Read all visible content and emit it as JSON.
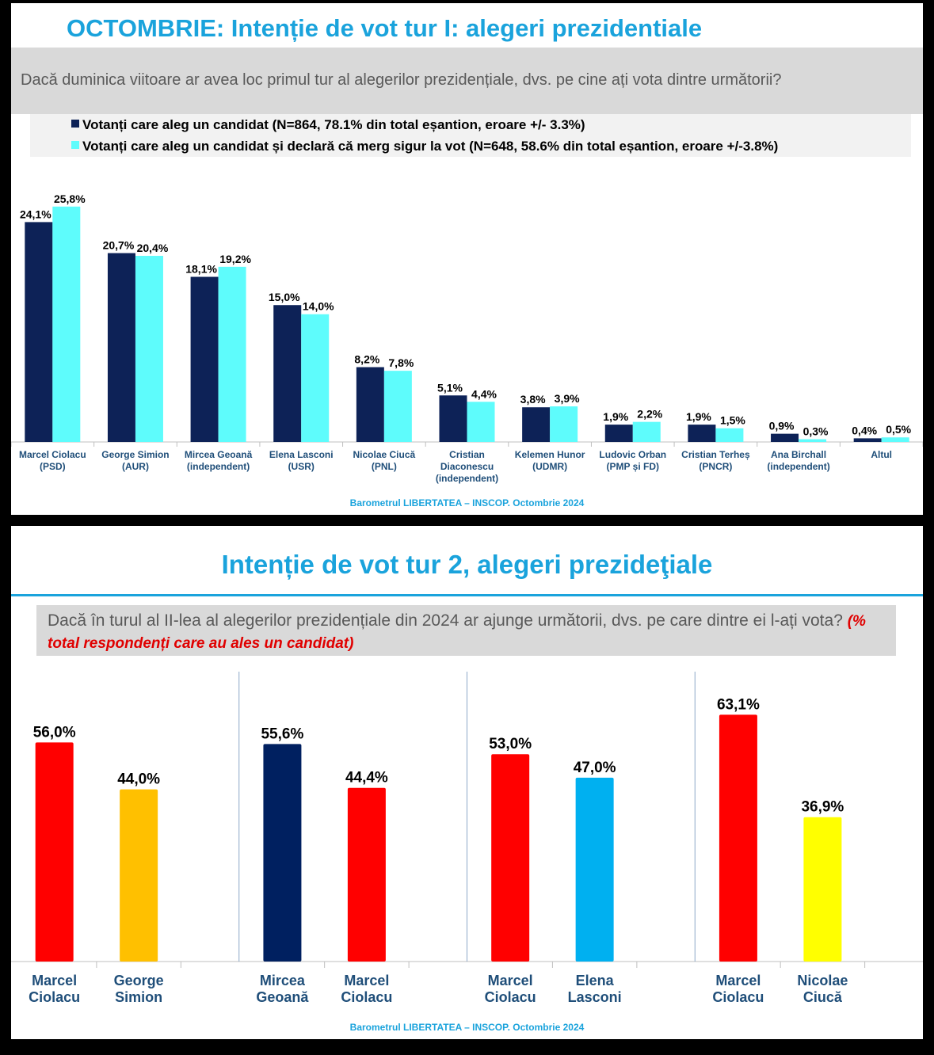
{
  "panel1": {
    "title": "OCTOMBRIE: Intenție de vot tur I: alegeri prezidentiale",
    "question": "Dacă duminica viitoare ar avea loc primul tur al alegerilor prezidențiale, dvs. pe cine ați vota dintre următorii?",
    "source": "Barometrul LIBERTATEA – INSCOP. Octombrie 2024"
  },
  "panel2": {
    "title": "Intenție de vot tur 2, alegeri prezideţiale",
    "question": "Dacă în turul al II-lea al alegerilor prezidențiale din 2024 ar ajunge următorii, dvs. pe care dintre ei l-ați vota?",
    "question_note": "(% total respondenți care au ales un candidat)",
    "source": "Barometrul LIBERTATEA – INSCOP. Octombrie 2024"
  },
  "colors": {
    "navy": "#0d2257",
    "cyan": "#5efcfc",
    "red": "#ff0000",
    "orange": "#ffc000",
    "blue_navy": "#002060",
    "light_blue": "#00b0f0",
    "yellow": "#ffff00",
    "title_blue": "#1aa3dc"
  },
  "chart_data": [
    {
      "type": "bar",
      "title": "OCTOMBRIE: Intenție de vot tur I: alegeri prezidentiale",
      "categories": [
        [
          "Marcel Ciolacu",
          "(PSD)"
        ],
        [
          "George Simion",
          "(AUR)"
        ],
        [
          "Mircea Geoană",
          "(independent)"
        ],
        [
          "Elena Lasconi",
          "(USR)"
        ],
        [
          "Nicolae Ciucă",
          "(PNL)"
        ],
        [
          "Cristian",
          "Diaconescu",
          "(independent)"
        ],
        [
          "Kelemen Hunor",
          "(UDMR)"
        ],
        [
          "Ludovic Orban",
          "(PMP și FD)"
        ],
        [
          "Cristian Terheș",
          "(PNCR)"
        ],
        [
          "Ana Birchall",
          "(independent)"
        ],
        [
          "Altul"
        ]
      ],
      "series": [
        {
          "name": "Votanți care aleg un candidat (N=864, 78.1% din total eșantion, eroare +/- 3.3%)",
          "color": "#0d2257",
          "values": [
            24.1,
            20.7,
            18.1,
            15.0,
            8.2,
            5.1,
            3.8,
            1.9,
            1.9,
            0.9,
            0.4
          ],
          "labels": [
            "24,1%",
            "20,7%",
            "18,1%",
            "15,0%",
            "8,2%",
            "5,1%",
            "3,8%",
            "1,9%",
            "1,9%",
            "0,9%",
            "0,4%"
          ]
        },
        {
          "name": "Votanți care aleg un candidat și declară că merg sigur la vot (N=648, 58.6% din total eșantion, eroare +/-3.8%)",
          "color": "#5efcfc",
          "values": [
            25.8,
            20.4,
            19.2,
            14.0,
            7.8,
            4.4,
            3.9,
            2.2,
            1.5,
            0.3,
            0.5
          ],
          "labels": [
            "25,8%",
            "20,4%",
            "19,2%",
            "14,0%",
            "7,8%",
            "4,4%",
            "3,9%",
            "2,2%",
            "1,5%",
            "0,3%",
            "0,5%"
          ]
        }
      ],
      "ylim": [
        0,
        27
      ],
      "legend": "top"
    },
    {
      "type": "bar",
      "title": "Intenție de vot tur 2, alegeri prezideţiale",
      "groups": [
        {
          "candidates": [
            [
              "Marcel",
              "Ciolacu"
            ],
            [
              "George",
              "Simion"
            ]
          ],
          "values": [
            56.0,
            44.0
          ],
          "labels": [
            "56,0%",
            "44,0%"
          ],
          "colors": [
            "#ff0000",
            "#ffc000"
          ]
        },
        {
          "candidates": [
            [
              "Mircea",
              "Geoană"
            ],
            [
              "Marcel",
              "Ciolacu"
            ]
          ],
          "values": [
            55.6,
            44.4
          ],
          "labels": [
            "55,6%",
            "44,4%"
          ],
          "colors": [
            "#002060",
            "#ff0000"
          ]
        },
        {
          "candidates": [
            [
              "Marcel",
              "Ciolacu"
            ],
            [
              "Elena",
              "Lasconi"
            ]
          ],
          "values": [
            53.0,
            47.0
          ],
          "labels": [
            "53,0%",
            "47,0%"
          ],
          "colors": [
            "#ff0000",
            "#00b0f0"
          ]
        },
        {
          "candidates": [
            [
              "Marcel",
              "Ciolacu"
            ],
            [
              "Nicolae",
              "Ciucă"
            ]
          ],
          "values": [
            63.1,
            36.9
          ],
          "labels": [
            "63,1%",
            "36,9%"
          ],
          "colors": [
            "#ff0000",
            "#ffff00"
          ]
        }
      ],
      "ylim": [
        0,
        66
      ]
    }
  ]
}
